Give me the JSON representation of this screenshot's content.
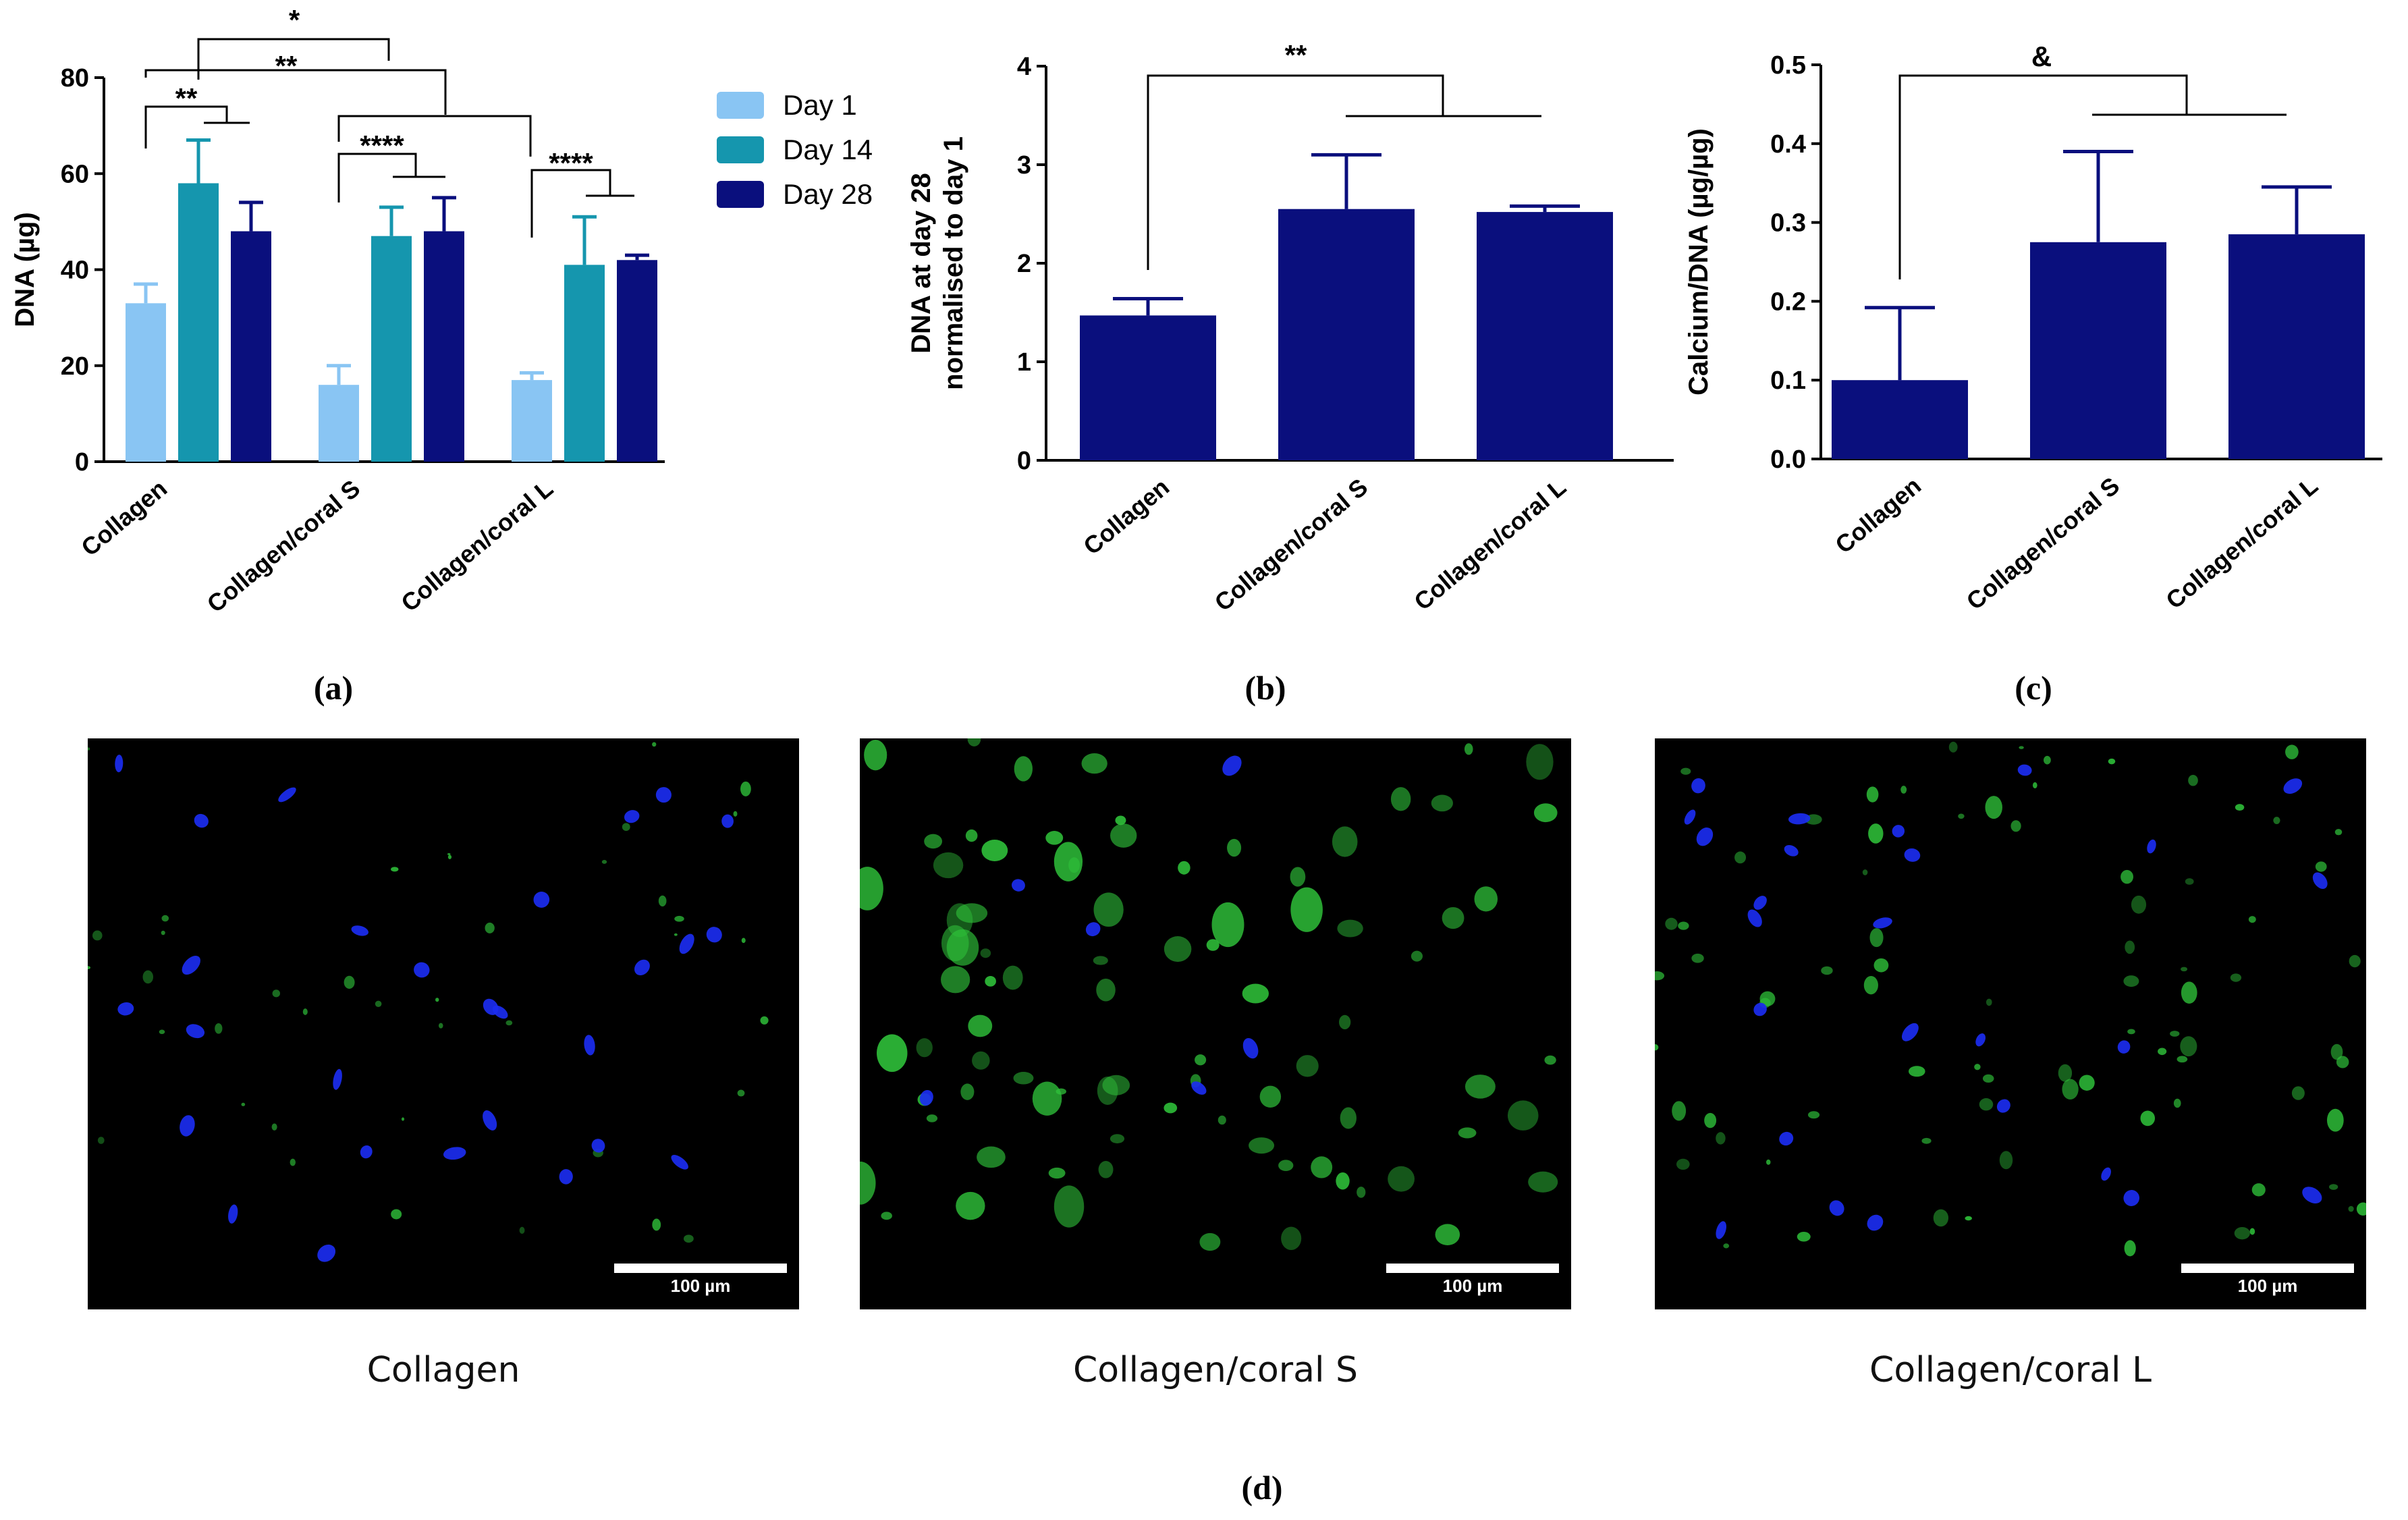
{
  "chart_data": [
    {
      "panel": "(a)",
      "type": "bar",
      "ylabel": "DNA (µg)",
      "ylim": [
        0,
        80
      ],
      "yticks": [
        0,
        20,
        40,
        60,
        80
      ],
      "categories": [
        "Collagen",
        "Collagen/coral S",
        "Collagen/coral L"
      ],
      "series": [
        {
          "name": "Day 1",
          "color": "#89c5f3",
          "values": [
            33,
            16,
            17
          ],
          "errors": [
            4,
            4,
            1.5
          ]
        },
        {
          "name": "Day 14",
          "color": "#1596ae",
          "values": [
            58,
            47,
            41
          ],
          "errors": [
            9,
            6,
            10
          ]
        },
        {
          "name": "Day 28",
          "color": "#0a0f7d",
          "values": [
            48,
            48,
            42
          ],
          "errors": [
            6,
            7,
            1
          ]
        }
      ],
      "legend": {
        "placement": "top-right"
      },
      "annotations": [
        "*",
        "**",
        "**",
        "****",
        "****"
      ]
    },
    {
      "panel": "(b)",
      "type": "bar",
      "ylabel": "DNA at day 28",
      "ylabel2": "normalised to day 1",
      "ylim": [
        0,
        4
      ],
      "yticks": [
        0,
        1,
        2,
        3,
        4
      ],
      "categories": [
        "Collagen",
        "Collagen/coral S",
        "Collagen/coral L"
      ],
      "series": [
        {
          "color": "#0a0f7d",
          "values": [
            1.47,
            2.55,
            2.52
          ],
          "errors": [
            0.17,
            0.55,
            0.06
          ]
        }
      ],
      "annotations": [
        "**"
      ]
    },
    {
      "panel": "(c)",
      "type": "bar",
      "ylabel": "Calcium/DNA (µg/µg)",
      "ylim": [
        0,
        0.5
      ],
      "yticks": [
        "0.0",
        "0.1",
        "0.2",
        "0.3",
        "0.4",
        "0.5"
      ],
      "categories": [
        "Collagen",
        "Collagen/coral S",
        "Collagen/coral L"
      ],
      "series": [
        {
          "color": "#0a0f7d",
          "values": [
            0.1,
            0.275,
            0.285
          ],
          "errors": [
            0.092,
            0.115,
            0.06
          ]
        }
      ],
      "annotations": [
        "&"
      ]
    }
  ],
  "micrographs": {
    "panel": "(d)",
    "scale_label": "100 µm",
    "images": [
      {
        "caption": "Collagen"
      },
      {
        "caption": "Collagen/coral S"
      },
      {
        "caption": "Collagen/coral L"
      }
    ]
  }
}
